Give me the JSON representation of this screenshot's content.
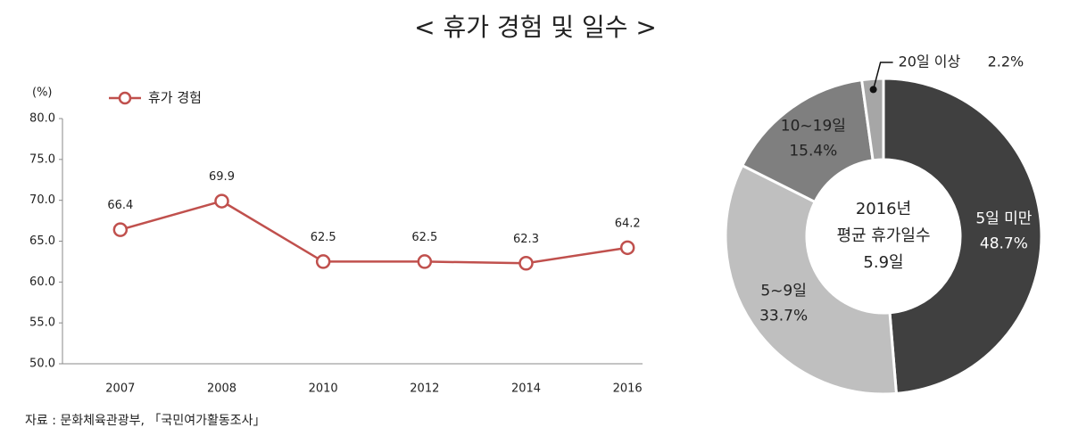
{
  "title": "< 휴가 경험 및 일수 >",
  "source": "자료 : 문화체육관광부, 「국민여가활동조사」",
  "chart_data": [
    {
      "type": "line",
      "y_unit": "(%)",
      "categories": [
        "2007",
        "2008",
        "2010",
        "2012",
        "2014",
        "2016"
      ],
      "series": [
        {
          "name": "휴가 경험",
          "color": "#c0504d",
          "values": [
            66.4,
            69.9,
            62.5,
            62.5,
            62.3,
            64.2
          ]
        }
      ],
      "ylim": [
        50,
        80
      ],
      "yticks": [
        {
          "value": 50,
          "label": "50.0"
        },
        {
          "value": 55,
          "label": "55.0"
        },
        {
          "value": 60,
          "label": "60.0"
        },
        {
          "value": 65,
          "label": "65.0"
        },
        {
          "value": 70,
          "label": "70.0"
        },
        {
          "value": 75,
          "label": "75.0"
        },
        {
          "value": 80,
          "label": "80.0"
        }
      ],
      "grid": false
    },
    {
      "type": "donut",
      "center_text": [
        "2016년",
        "평균 휴가일수",
        "5.9일"
      ],
      "categories": [
        "5일 미만",
        "5~9일",
        "10~19일",
        "20일 이상"
      ],
      "values": [
        48.7,
        33.7,
        15.4,
        2.2
      ],
      "value_labels": [
        "48.7%",
        "33.7%",
        "15.4%",
        "2.2%"
      ],
      "colors": [
        "#404040",
        "#bfbfbf",
        "#7f7f7f",
        "#a6a6a6"
      ],
      "label_colors": [
        "#ffffff",
        "#222222",
        "#222222",
        "#222222"
      ]
    }
  ]
}
